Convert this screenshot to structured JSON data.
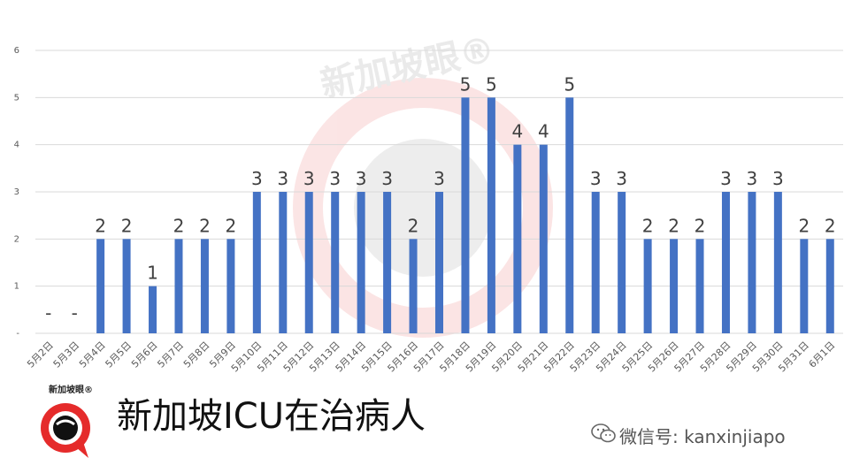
{
  "chart_data": {
    "type": "bar",
    "categories": [
      "5月2日",
      "5月3日",
      "5月4日",
      "5月5日",
      "5月6日",
      "5月7日",
      "5月8日",
      "5月9日",
      "5月10日",
      "5月11日",
      "5月12日",
      "5月13日",
      "5月14日",
      "5月15日",
      "5月16日",
      "5月17日",
      "5月18日",
      "5月19日",
      "5月20日",
      "5月21日",
      "5月22日",
      "5月23日",
      "5月24日",
      "5月25日",
      "5月26日",
      "5月27日",
      "5月28日",
      "5月29日",
      "5月30日",
      "5月31日",
      "6月1日"
    ],
    "values": [
      0,
      0,
      2,
      2,
      1,
      2,
      2,
      2,
      3,
      3,
      3,
      3,
      3,
      3,
      2,
      3,
      5,
      5,
      4,
      4,
      5,
      3,
      3,
      2,
      2,
      2,
      3,
      3,
      3,
      2,
      2
    ],
    "data_labels": [
      "-",
      "-",
      "2",
      "2",
      "1",
      "2",
      "2",
      "2",
      "3",
      "3",
      "3",
      "3",
      "3",
      "3",
      "2",
      "3",
      "5",
      "5",
      "4",
      "4",
      "5",
      "3",
      "3",
      "2",
      "2",
      "2",
      "3",
      "3",
      "3",
      "2",
      "2"
    ],
    "y_ticks": [
      "-",
      "1",
      "2",
      "3",
      "4",
      "5",
      "6"
    ],
    "ylim": [
      0,
      6
    ],
    "grid": true,
    "bar_color": "#4472c4"
  },
  "title": "新加坡ICU在治病人",
  "watermark": "新加坡眼®",
  "logo_text": "新加坡眼®",
  "wechat": {
    "label": "微信号: kanxinjiapo",
    "icon": "wechat-icon"
  }
}
